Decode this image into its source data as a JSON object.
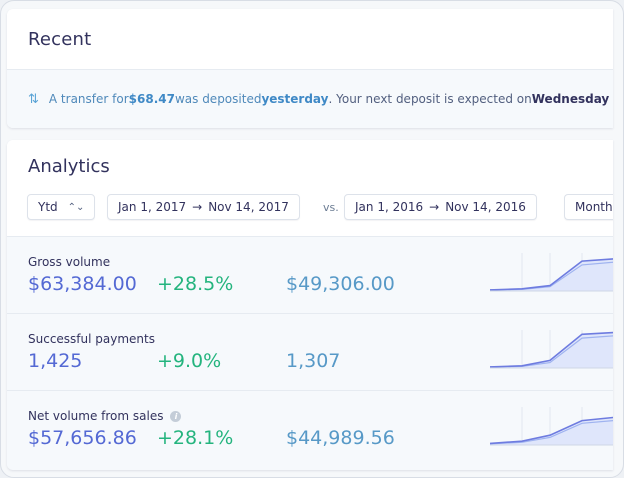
{
  "recent": {
    "title": "Recent",
    "notice": {
      "prefix": "A transfer for ",
      "amount": "$68.47",
      "middle": " was deposited ",
      "when": "yesterday",
      "suffix": ". Your next deposit is expected on ",
      "day": "Wednesday"
    }
  },
  "analytics": {
    "title": "Analytics",
    "period": "Ytd",
    "range_current": {
      "start": "Jan 1, 2017",
      "end": "Nov 14, 2017"
    },
    "vs_label": "vs.",
    "range_previous": {
      "start": "Jan 1, 2016",
      "end": "Nov 14, 2016"
    },
    "interval": "Monthly",
    "metrics": [
      {
        "label": "Gross volume",
        "value": "$63,384.00",
        "change": "+28.5%",
        "previous": "$49,306.00",
        "info": false,
        "spark": {
          "current": [
            2,
            4,
            10,
            55,
            60
          ],
          "previous": [
            2,
            3,
            8,
            48,
            54
          ]
        }
      },
      {
        "label": "Successful payments",
        "value": "1,425",
        "change": "+9.0%",
        "previous": "1,307",
        "info": false,
        "spark": {
          "current": [
            2,
            4,
            14,
            62,
            66
          ],
          "previous": [
            2,
            3,
            10,
            55,
            60
          ]
        }
      },
      {
        "label": "Net volume from sales",
        "value": "$57,656.86",
        "change": "+28.1%",
        "previous": "$44,989.56",
        "info": true,
        "spark": {
          "current": [
            3,
            7,
            18,
            45,
            52
          ],
          "previous": [
            2,
            5,
            14,
            40,
            46
          ]
        }
      }
    ],
    "colors": {
      "primary": "#5469d4",
      "positive": "#24b47e",
      "previous": "#5799c7",
      "spark_line": "#6e7ce0",
      "spark_prev": "#9fb3f0",
      "spark_fill": "#dfe6fb"
    }
  }
}
